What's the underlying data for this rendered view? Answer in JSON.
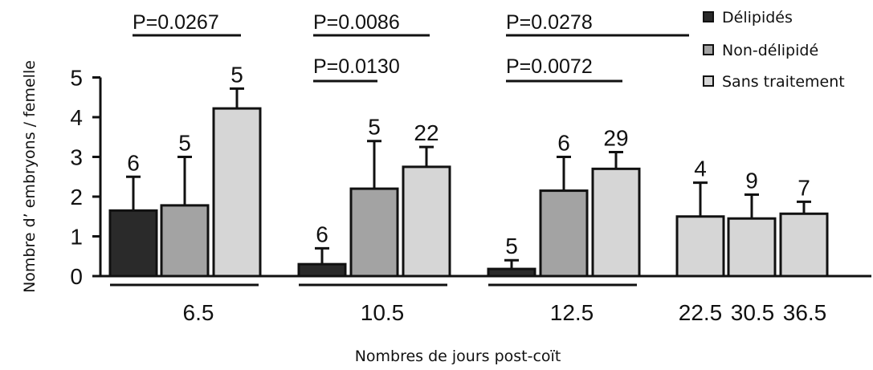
{
  "chart_data": {
    "type": "bar",
    "title": "",
    "xlabel": "Nombres de jours post-coït",
    "ylabel": "Nombre d’ embryons / femelle",
    "ylim": [
      0,
      5
    ],
    "yticks": [
      "0",
      "1",
      "2",
      "3",
      "4",
      "5"
    ],
    "legend_position": "top-right",
    "groups": [
      {
        "label": "6.5",
        "bars": [
          {
            "series": "Délipidés",
            "value": 1.65,
            "err": 0.85,
            "n": "6"
          },
          {
            "series": "Non-délipidé",
            "value": 1.78,
            "err": 1.22,
            "n": "5"
          },
          {
            "series": "Sans traitement",
            "value": 4.22,
            "err": 0.5,
            "n": "5"
          }
        ]
      },
      {
        "label": "10.5",
        "bars": [
          {
            "series": "Délipidés",
            "value": 0.3,
            "err": 0.4,
            "n": "6"
          },
          {
            "series": "Non-délipidé",
            "value": 2.2,
            "err": 1.2,
            "n": "5"
          },
          {
            "series": "Sans traitement",
            "value": 2.75,
            "err": 0.5,
            "n": "22"
          }
        ]
      },
      {
        "label": "12.5",
        "bars": [
          {
            "series": "Délipidés",
            "value": 0.18,
            "err": 0.22,
            "n": "5"
          },
          {
            "series": "Non-délipidé",
            "value": 2.15,
            "err": 0.85,
            "n": "6"
          },
          {
            "series": "Sans traitement",
            "value": 2.7,
            "err": 0.42,
            "n": "29"
          }
        ]
      },
      {
        "label": "22.5",
        "bars": [
          {
            "series": "Sans traitement",
            "value": 1.5,
            "err": 0.85,
            "n": "4"
          }
        ]
      },
      {
        "label": "30.5",
        "bars": [
          {
            "series": "Sans traitement",
            "value": 1.45,
            "err": 0.6,
            "n": "9"
          }
        ]
      },
      {
        "label": "36.5",
        "bars": [
          {
            "series": "Sans traitement",
            "value": 1.57,
            "err": 0.3,
            "n": "7"
          }
        ]
      }
    ],
    "series": [
      {
        "name": "Délipidés",
        "color": "#2a2a2a"
      },
      {
        "name": "Non-délipidé",
        "color": "#a3a3a3"
      },
      {
        "name": "Sans traitement",
        "color": "#d6d6d6"
      }
    ],
    "pvalues": [
      {
        "text": "P=0.0267",
        "row": 1,
        "group": "6.5"
      },
      {
        "text": "P=0.0086",
        "row": 1,
        "group": "10.5"
      },
      {
        "text": "P=0.0130",
        "row": 2,
        "group": "10.5"
      },
      {
        "text": "P=0.0278",
        "row": 1,
        "group": "12.5"
      },
      {
        "text": "P=0.0072",
        "row": 2,
        "group": "12.5"
      }
    ]
  }
}
